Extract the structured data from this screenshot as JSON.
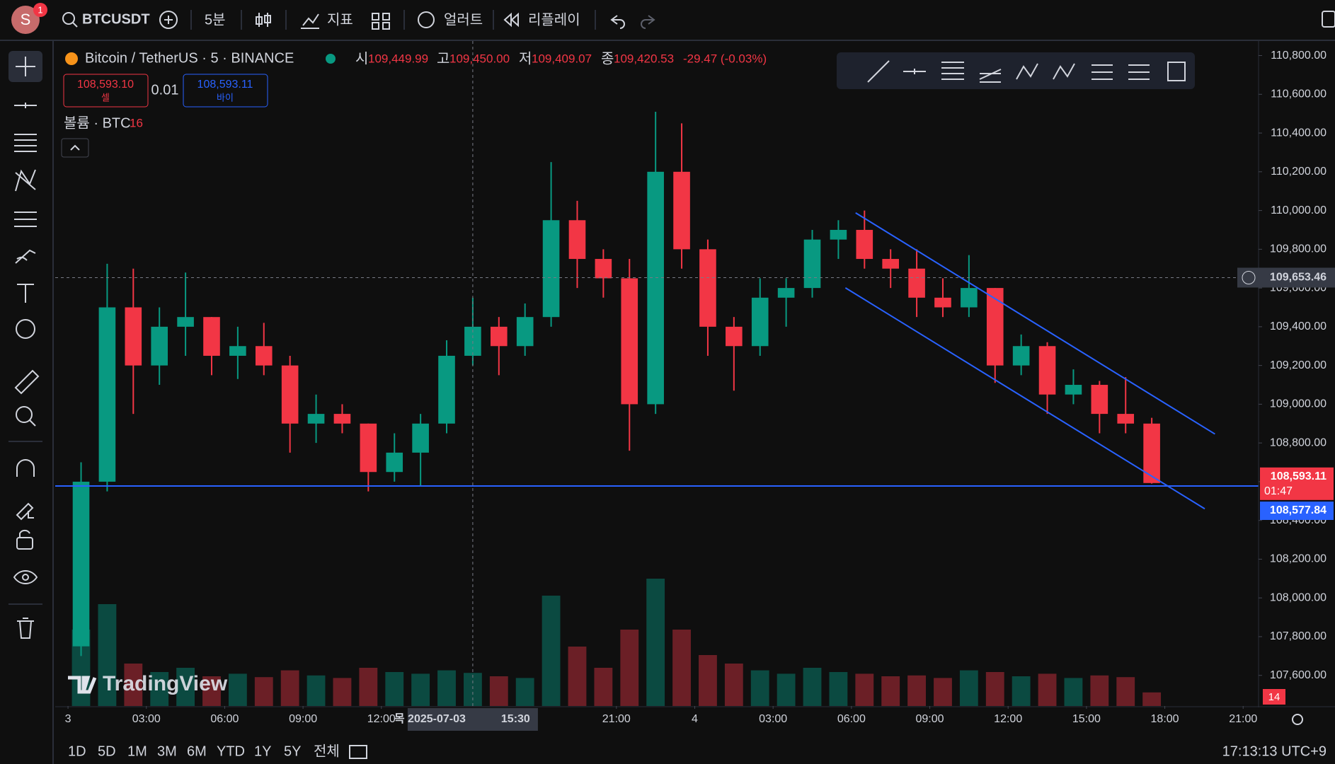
{
  "top_bar": {
    "avatar": "S",
    "badge": "1",
    "symbol": "BTCUSDT",
    "interval": "5분",
    "indicators": "지표",
    "alert": "얼러트",
    "replay": "리플레이"
  },
  "legend": {
    "title": "Bitcoin / TetherUS · 5 · BINANCE",
    "open_label": "시",
    "open": "109,449.99",
    "high_label": "고",
    "high": "109,450.00",
    "low_label": "저",
    "low": "109,409.07",
    "close_label": "종",
    "close": "109,420.53",
    "change": "-29.47 (-0.03%)",
    "sell_price": "108,593.10",
    "sell_label": "셀",
    "spread": "0.01",
    "buy_price": "108,593.11",
    "buy_label": "바이",
    "volume_title": "볼륨 · BTC",
    "volume_value": "16"
  },
  "chart_data": {
    "type": "candlestick",
    "x": [
      0,
      1,
      2,
      3,
      4,
      5,
      6,
      7,
      8,
      9,
      10,
      11,
      12,
      13,
      14,
      15,
      16,
      17,
      18,
      19,
      20,
      21,
      22,
      23,
      24,
      25,
      26,
      27,
      28,
      29,
      30,
      31,
      32,
      33,
      34,
      35,
      36,
      37,
      38,
      39,
      40,
      41
    ],
    "open": [
      107750,
      108600,
      109500,
      109200,
      109400,
      109450,
      109250,
      109300,
      109200,
      108900,
      108950,
      108900,
      108650,
      108750,
      108900,
      109250,
      109400,
      109300,
      109450,
      109950,
      109750,
      109650,
      109000,
      110200,
      109800,
      109400,
      109300,
      109550,
      109600,
      109850,
      109900,
      109750,
      109700,
      109550,
      109500,
      109600,
      109200,
      109300,
      109050,
      109100,
      108950,
      108900
    ],
    "high": [
      108700,
      109725,
      109700,
      109500,
      109680,
      109450,
      109400,
      109420,
      109250,
      109050,
      109000,
      108900,
      108850,
      108950,
      109330,
      109550,
      109450,
      109520,
      110250,
      110050,
      109800,
      109750,
      110510,
      110450,
      109850,
      109450,
      109650,
      109650,
      109900,
      109950,
      110000,
      109800,
      109800,
      109650,
      109770,
      109600,
      109360,
      109320,
      109180,
      109120,
      109140,
      108930
    ],
    "low": [
      107700,
      108550,
      108950,
      109100,
      109250,
      109150,
      109130,
      109150,
      108750,
      108800,
      108850,
      108550,
      108600,
      108580,
      108850,
      109200,
      109150,
      109250,
      109400,
      109600,
      109550,
      108760,
      108950,
      109700,
      109250,
      109070,
      109250,
      109400,
      109550,
      109750,
      109700,
      109600,
      109450,
      109450,
      109450,
      109110,
      109150,
      108950,
      109000,
      108850,
      108850,
      108590
    ],
    "close": [
      108600,
      109500,
      109200,
      109400,
      109450,
      109250,
      109300,
      109200,
      108900,
      108950,
      108900,
      108650,
      108750,
      108900,
      109250,
      109400,
      109300,
      109450,
      109950,
      109750,
      109650,
      109000,
      110200,
      109800,
      109400,
      109300,
      109550,
      109600,
      109850,
      109900,
      109750,
      109700,
      109550,
      109500,
      109600,
      109200,
      109300,
      109050,
      109100,
      108950,
      108900,
      108593.11
    ],
    "volume": [
      900,
      1200,
      500,
      400,
      450,
      350,
      380,
      340,
      420,
      360,
      330,
      450,
      400,
      380,
      420,
      390,
      350,
      330,
      1300,
      700,
      450,
      900,
      1500,
      900,
      600,
      500,
      420,
      380,
      450,
      400,
      380,
      350,
      360,
      330,
      420,
      400,
      350,
      380,
      330,
      360,
      340,
      160
    ],
    "up_color": "#089981",
    "down_color": "#f23645",
    "volume_up_color": "#0b4a41",
    "volume_down_color": "#6b1f26",
    "xlim": [
      -0.49,
      45.59
    ],
    "xticks": [
      {
        "value": 0,
        "label": "3"
      },
      {
        "value": 3,
        "label": "03:00"
      },
      {
        "value": 6,
        "label": "06:00"
      },
      {
        "value": 9,
        "label": "09:00"
      },
      {
        "value": 12,
        "label": "12:00"
      },
      {
        "value": 21,
        "label": "21:00"
      },
      {
        "value": 24,
        "label": "4"
      },
      {
        "value": 27,
        "label": "03:00"
      },
      {
        "value": 30,
        "label": "06:00"
      },
      {
        "value": 33,
        "label": "09:00"
      },
      {
        "value": 36,
        "label": "12:00"
      },
      {
        "value": 39,
        "label": "15:00"
      },
      {
        "value": 42,
        "label": "18:00"
      },
      {
        "value": 45,
        "label": "21:00"
      }
    ],
    "ylim": [
      107442,
      110875
    ],
    "yticks": [
      {
        "value": 107600,
        "label": "107,600.00"
      },
      {
        "value": 107800,
        "label": "107,800.00"
      },
      {
        "value": 108000,
        "label": "108,000.00"
      },
      {
        "value": 108200,
        "label": "108,200.00"
      },
      {
        "value": 108400,
        "label": "108,400.00"
      },
      {
        "value": 108600,
        "label": "108,600.00"
      },
      {
        "value": 108800,
        "label": "108,800.00"
      },
      {
        "value": 109000,
        "label": "109,000.00"
      },
      {
        "value": 109200,
        "label": "109,200.00"
      },
      {
        "value": 109400,
        "label": "109,400.00"
      },
      {
        "value": 109600,
        "label": "109,600.00"
      },
      {
        "value": 109800,
        "label": "109,800.00"
      },
      {
        "value": 110000,
        "label": "110,000.00"
      },
      {
        "value": 110200,
        "label": "110,200.00"
      },
      {
        "value": 110400,
        "label": "110,400.00"
      },
      {
        "value": 110600,
        "label": "110,600.00"
      },
      {
        "value": 110800,
        "label": "110,800.00"
      }
    ],
    "grid": false,
    "hlines": [
      {
        "value": 108577.84,
        "color": "#2962ff"
      }
    ],
    "channels": [
      {
        "x": [
          30.16,
          43.92
        ],
        "y": [
          109988,
          108846
        ],
        "color": "#2962ff"
      },
      {
        "x": [
          29.77,
          43.53
        ],
        "y": [
          109601,
          108460
        ],
        "color": "#2962ff"
      }
    ],
    "crosshair": {
      "x": 15.5,
      "x_label": "목 2025-07-03",
      "x_time": "15:30",
      "y": 109653.46,
      "y_label": "109,653.46"
    },
    "price_labels": [
      {
        "value": 108593.11,
        "label": "108,593.11",
        "countdown": "01:47",
        "color": "#f23645"
      },
      {
        "value": 108577.84,
        "label": "108,577.84",
        "color": "#2962ff"
      }
    ],
    "volume_label": "14",
    "watermark": "TradingView"
  },
  "bottom_bar": {
    "ranges": [
      "1D",
      "5D",
      "1M",
      "3M",
      "6M",
      "YTD",
      "1Y",
      "5Y",
      "전체"
    ],
    "clock": "17:13:13 UTC+9"
  }
}
